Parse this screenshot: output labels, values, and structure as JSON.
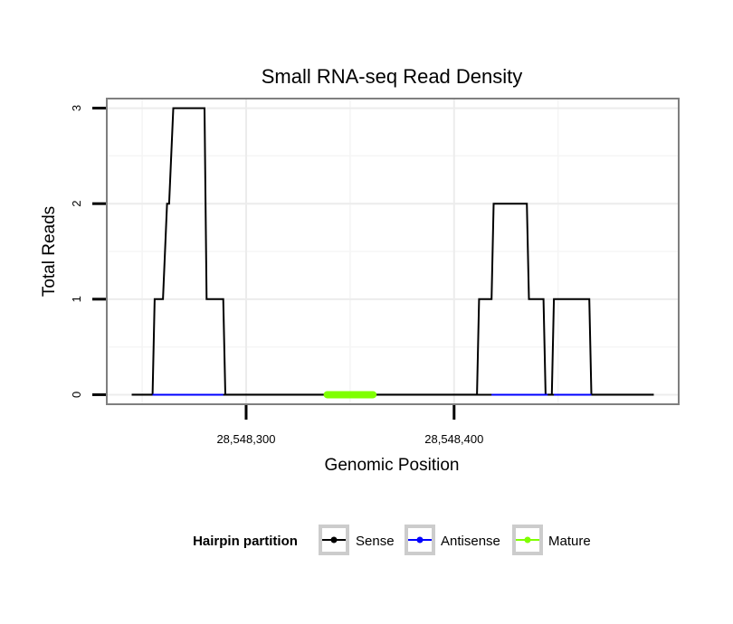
{
  "chart_data": {
    "type": "line",
    "title": "Small RNA-seq Read Density",
    "xlabel": "Genomic Position",
    "ylabel": "Total Reads",
    "xlim": [
      28548233,
      28548508
    ],
    "ylim": [
      -0.1,
      3.1
    ],
    "x_ticks": [
      {
        "value": 28548300,
        "label": "28,548,300"
      },
      {
        "value": 28548400,
        "label": "28,548,400"
      }
    ],
    "y_ticks": [
      {
        "value": 0,
        "label": "0"
      },
      {
        "value": 1,
        "label": "1"
      },
      {
        "value": 2,
        "label": "2"
      },
      {
        "value": 3,
        "label": "3"
      }
    ],
    "grid": true,
    "series": [
      {
        "name": "Sense",
        "color": "#000000",
        "x": [
          28548245,
          28548255,
          28548256,
          28548259,
          28548260,
          28548262,
          28548263,
          28548265,
          28548266,
          28548280,
          28548281,
          28548289,
          28548290,
          28548411,
          28548412,
          28548418,
          28548419,
          28548435,
          28548436,
          28548443,
          28548444,
          28548447,
          28548448,
          28548465,
          28548466,
          28548496
        ],
        "y": [
          0,
          0,
          1,
          1,
          1,
          2,
          2,
          3,
          3,
          3,
          1,
          1,
          0,
          0,
          1,
          1,
          2,
          2,
          1,
          1,
          0,
          0,
          1,
          1,
          0,
          0
        ]
      },
      {
        "name": "Antisense",
        "color": "#0000ff",
        "segments": [
          [
            28548255,
            28548289
          ],
          [
            28548418,
            28548445
          ],
          [
            28548448,
            28548466
          ]
        ],
        "y": 0
      },
      {
        "name": "Mature",
        "color": "#7fff00",
        "segments": [
          [
            28548339,
            28548361
          ]
        ],
        "y": 0
      }
    ],
    "legend": {
      "title": "Hairpin partition",
      "position": "bottom",
      "entries": [
        "Sense",
        "Antisense",
        "Mature"
      ]
    }
  }
}
